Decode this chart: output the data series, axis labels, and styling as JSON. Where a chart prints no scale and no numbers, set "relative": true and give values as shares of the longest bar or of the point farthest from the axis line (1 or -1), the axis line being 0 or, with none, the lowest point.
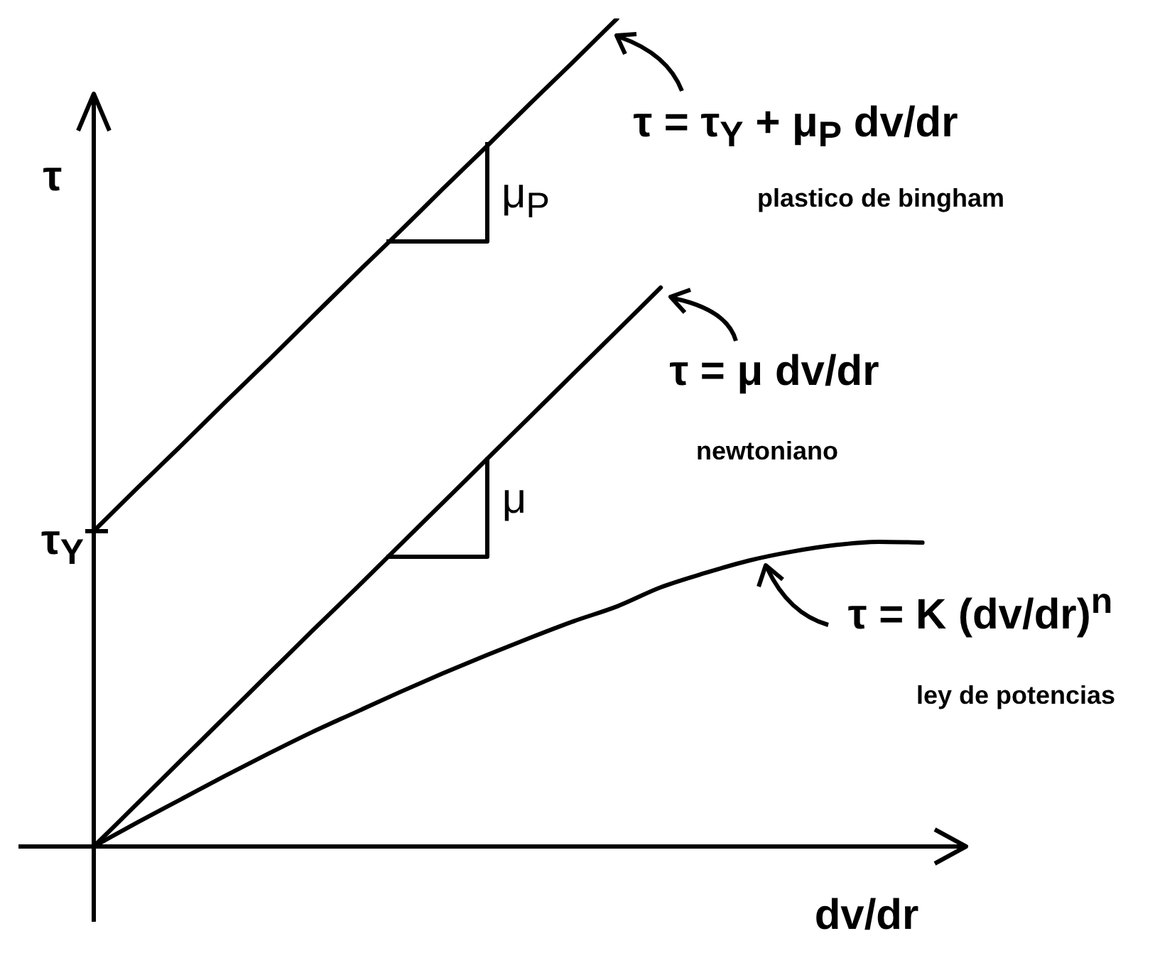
{
  "chart_data": {
    "type": "line",
    "relative": true,
    "xlabel": "dv/dr",
    "ylabel": "τ",
    "marker": "none",
    "line_style": "solid",
    "categories": [
      null,
      null,
      null,
      null,
      null,
      null,
      null,
      null,
      null,
      null,
      null,
      null,
      null,
      null,
      null,
      null,
      null,
      null,
      null,
      null,
      null
    ],
    "series": [
      {
        "color": "#000000",
        "values": [
          0.381,
          0.433,
          0.484,
          0.536,
          0.587,
          0.639,
          0.691,
          0.742,
          0.794,
          0.845,
          0.897,
          0.948,
          1,
          null,
          null,
          null,
          null,
          null,
          null,
          null,
          null
        ]
      },
      {
        "color": "#000000",
        "values": [
          0,
          0.052,
          0.104,
          0.156,
          0.208,
          0.26,
          0.311,
          0.363,
          0.415,
          0.467,
          0.519,
          0.571,
          0.623,
          0.675,
          null,
          null,
          null,
          null,
          null,
          null,
          null
        ]
      },
      {
        "color": "#000000",
        "values": [
          0,
          0.029,
          0.057,
          0.085,
          0.112,
          0.138,
          0.162,
          0.186,
          0.209,
          0.231,
          0.252,
          0.272,
          0.29,
          0.313,
          0.33,
          0.345,
          0.356,
          0.364,
          0.368,
          0.367,
          null
        ]
      }
    ],
    "annotations": [
      "τ = τ$_{Y}$ + μ$_{P}$ dv/dr",
      "plastico de bingham",
      "μ$_{P}$",
      "τ = μ dv/dr",
      "newtoniano",
      "μ",
      "τ = K (dv/dr)$^{n}$",
      "ley de potencias",
      "τ$_{Y}$"
    ]
  }
}
